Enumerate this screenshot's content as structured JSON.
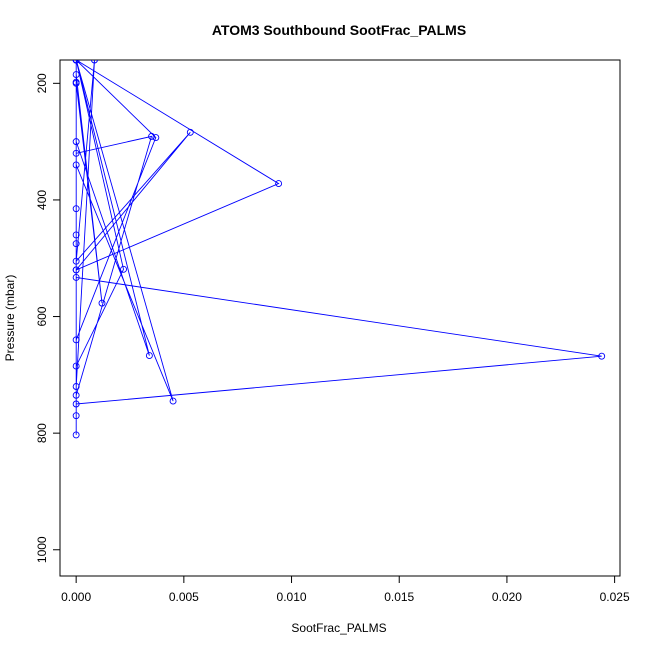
{
  "chart_data": {
    "type": "scatter",
    "title": "ATOM3 Southbound SootFrac_PALMS",
    "xlabel": "SootFrac_PALMS",
    "ylabel": "Pressure (mbar)",
    "xlim": [
      -0.00075,
      0.02525
    ],
    "ylim": [
      1045,
      160
    ],
    "y_reversed": true,
    "grid": false,
    "x_ticks": [
      0.0,
      0.005,
      0.01,
      0.015,
      0.02,
      0.025
    ],
    "x_tick_labels": [
      "0.000",
      "0.005",
      "0.010",
      "0.015",
      "0.020",
      "0.025"
    ],
    "y_ticks": [
      200,
      400,
      600,
      800,
      1000
    ],
    "y_tick_labels": [
      "200",
      "400",
      "600",
      "800",
      "1000"
    ],
    "series": [
      {
        "style": "points-and-lines",
        "color": "#0000ff",
        "x": [
          0.0,
          0.0,
          0.0,
          0.00085,
          0.0,
          0.0053,
          0.0,
          0.0,
          0.0035,
          0.0,
          0.0,
          0.0022,
          0.0,
          0.0045,
          0.0,
          0.0,
          0.0012,
          0.0,
          0.0,
          0.0034,
          0.0,
          0.0,
          0.0244,
          0.0,
          0.0,
          0.0094,
          0.0,
          0.0,
          0.0037,
          0.0,
          0.0,
          0.0,
          0.0,
          0.0
        ],
        "y": [
          803,
          770,
          720,
          160,
          505,
          284,
          520,
          320,
          291,
          735,
          685,
          519,
          160,
          745,
          340,
          185,
          577,
          200,
          300,
          667,
          160,
          533,
          668,
          750,
          160,
          372,
          520,
          160,
          293,
          640,
          198,
          415,
          460,
          475
        ]
      }
    ]
  }
}
